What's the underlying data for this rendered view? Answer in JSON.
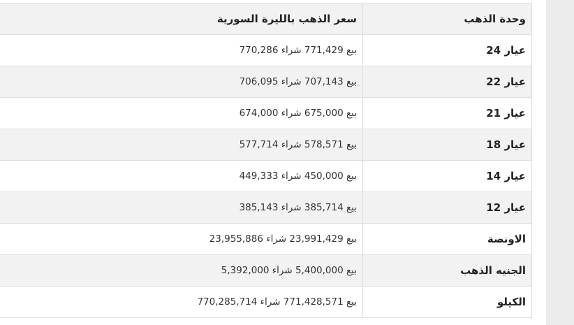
{
  "table": {
    "headers": [
      "وحدة الذهب",
      "سعر الذهب بالليرة السورية"
    ],
    "rows": [
      {
        "unit": "عيار 24",
        "price": "بيع 771,429 شراء 770,286"
      },
      {
        "unit": "عيار 22",
        "price": "بيع 707,143 شراء 706,095"
      },
      {
        "unit": "عيار 21",
        "price": "بيع 675,000 شراء 674,000"
      },
      {
        "unit": "عيار 18",
        "price": "بيع 578,571 شراء 577,714"
      },
      {
        "unit": "عيار 14",
        "price": "بيع 450,000 شراء 449,333"
      },
      {
        "unit": "عيار 12",
        "price": "بيع 385,714 شراء 385,143"
      },
      {
        "unit": "الاونصة",
        "price": "بيع 23,991,429 شراء 23,955,886"
      },
      {
        "unit": "الجنيه الذهب",
        "price": "بيع 5,400,000 شراء 5,392,000"
      },
      {
        "unit": "الكيلو",
        "price": "بيع 771,428,571 شراء 770,285,714"
      }
    ]
  },
  "colors": {
    "header_bg": "#f2f2f2",
    "alt_row_bg": "#f2f2f2",
    "border": "#dedede",
    "sidebar": "#ebebeb"
  }
}
